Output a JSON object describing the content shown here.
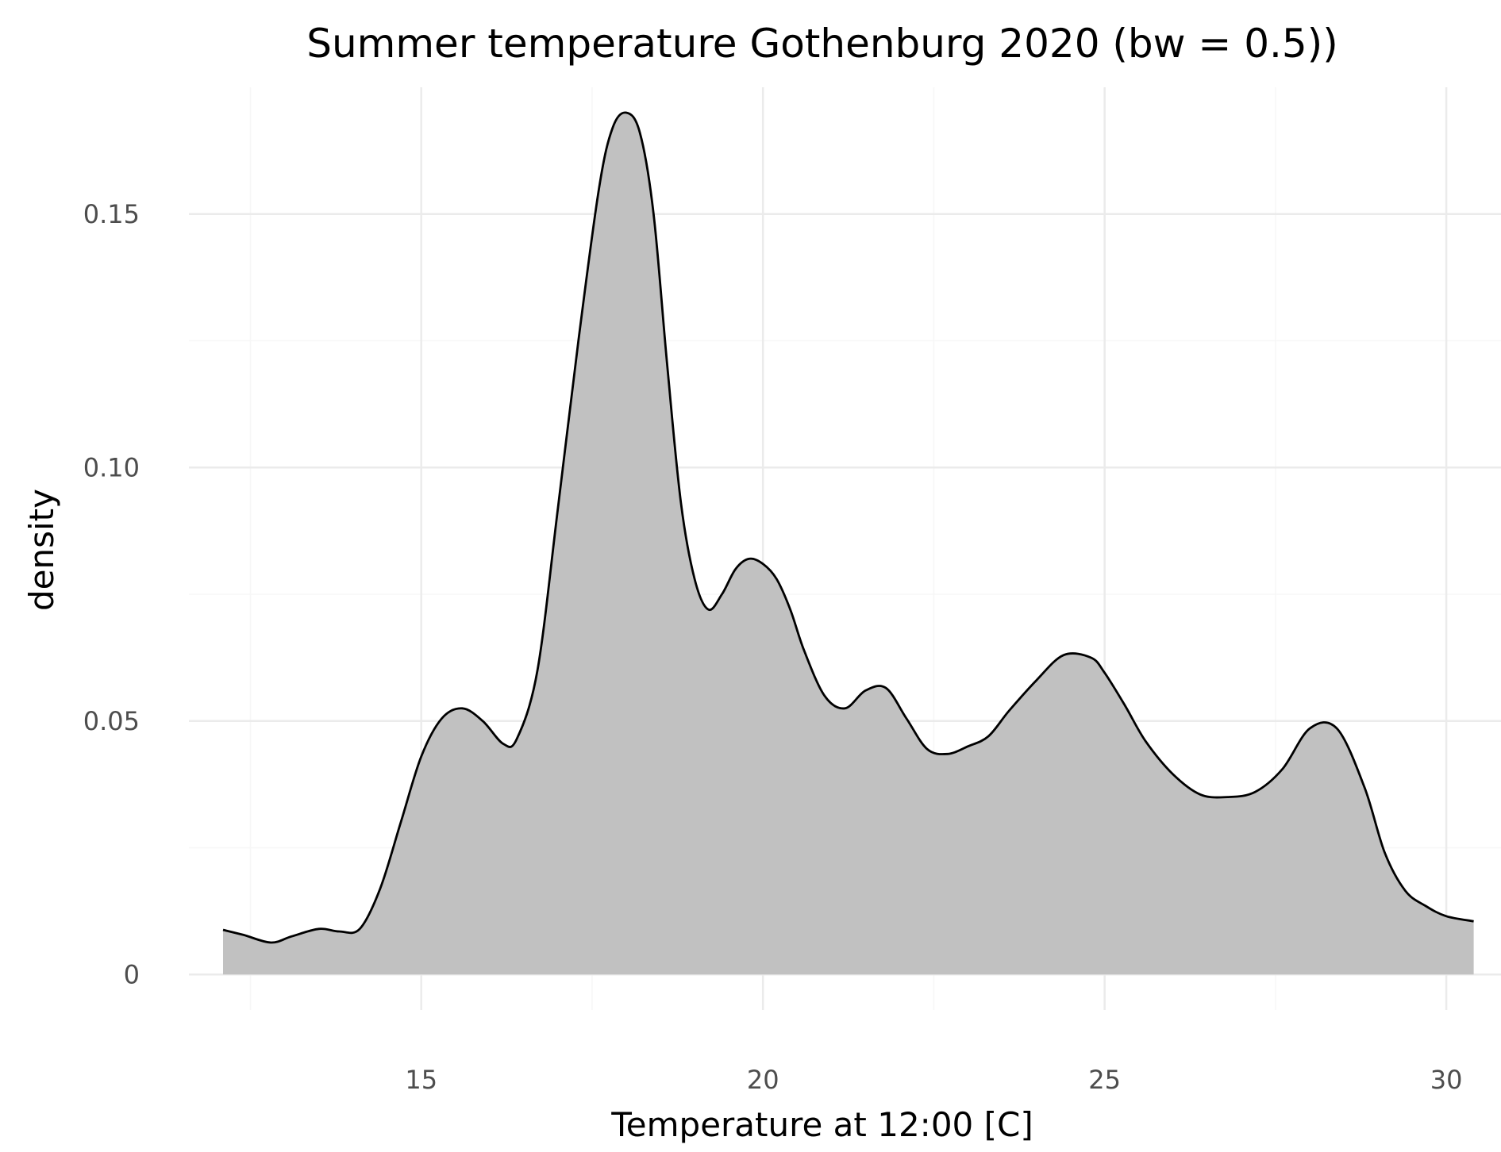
{
  "chart_data": {
    "type": "area",
    "title": "Summer temperature Gothenburg 2020 (bw = 0.5))",
    "xlabel": "Temperature at 12:00 [C]",
    "ylabel": "density",
    "xlim": [
      11.6,
      30.8
    ],
    "ylim": [
      -0.007,
      0.175
    ],
    "x_ticks": [
      15,
      20,
      25,
      30
    ],
    "x_tick_labels": [
      "15",
      "20",
      "25",
      "30"
    ],
    "y_ticks": [
      0,
      0.05,
      0.1,
      0.15
    ],
    "y_tick_labels": [
      "0",
      "0.05",
      "0.10",
      "0.15"
    ],
    "x_minor_ticks": [
      12.5,
      17.5,
      22.5,
      27.5
    ],
    "y_minor_ticks": [
      0.025,
      0.075,
      0.125
    ],
    "grid": true,
    "fill_color": "#c1c1c1",
    "line_color": "#000000",
    "series": [
      {
        "x": [
          12.1,
          12.4,
          12.8,
          13.1,
          13.5,
          13.8,
          14.1,
          14.4,
          14.7,
          15.0,
          15.3,
          15.6,
          15.9,
          16.2,
          16.4,
          16.7,
          17.0,
          17.3,
          17.6,
          17.8,
          18.0,
          18.2,
          18.4,
          18.6,
          18.8,
          19.0,
          19.2,
          19.4,
          19.6,
          19.8,
          20.0,
          20.2,
          20.4,
          20.6,
          20.9,
          21.2,
          21.5,
          21.8,
          22.1,
          22.4,
          22.7,
          23.0,
          23.3,
          23.6,
          24.0,
          24.4,
          24.8,
          25.0,
          25.3,
          25.6,
          26.0,
          26.4,
          26.8,
          27.2,
          27.6,
          28.0,
          28.4,
          28.8,
          29.1,
          29.4,
          29.7,
          30.0,
          30.4
        ],
        "y": [
          0.0088,
          0.0078,
          0.0063,
          0.0075,
          0.009,
          0.0085,
          0.009,
          0.017,
          0.03,
          0.043,
          0.0505,
          0.0525,
          0.05,
          0.0455,
          0.0465,
          0.06,
          0.092,
          0.125,
          0.155,
          0.167,
          0.17,
          0.166,
          0.15,
          0.12,
          0.093,
          0.078,
          0.072,
          0.075,
          0.08,
          0.082,
          0.081,
          0.078,
          0.072,
          0.064,
          0.055,
          0.0525,
          0.056,
          0.0565,
          0.0505,
          0.0445,
          0.0435,
          0.045,
          0.047,
          0.052,
          0.058,
          0.063,
          0.0625,
          0.0595,
          0.053,
          0.046,
          0.0395,
          0.0355,
          0.035,
          0.036,
          0.0405,
          0.0485,
          0.0485,
          0.037,
          0.024,
          0.0165,
          0.0135,
          0.0115,
          0.0105
        ]
      }
    ]
  }
}
